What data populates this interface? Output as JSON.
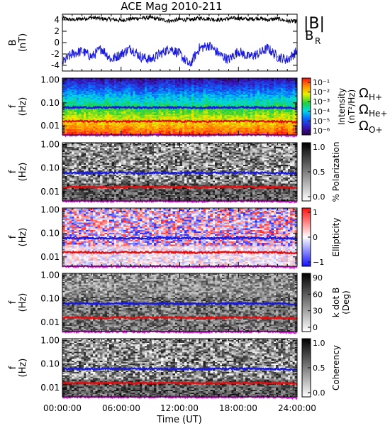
{
  "title": "ACE Mag 2010-211",
  "xaxis": {
    "label": "Time (UT)",
    "ticks": [
      "00:00:00",
      "06:00:00",
      "12:00:00",
      "18:00:00",
      "24:00:00"
    ],
    "range_hours": [
      0,
      24
    ]
  },
  "legend_top": [
    {
      "text": "|B|",
      "color": "#000000"
    },
    {
      "text": "B",
      "sub": "R",
      "color": "#1a1adc"
    }
  ],
  "legend_freq": [
    {
      "symbol": "Ω",
      "sub": "H+",
      "color": "#1a1adc"
    },
    {
      "symbol": "Ω",
      "sub": "He+",
      "color": "#e01010"
    },
    {
      "symbol": "Ω",
      "sub": "O+",
      "color": "#dd22dd"
    }
  ],
  "colors": {
    "blue": "#1a1adc",
    "red": "#e01010",
    "magenta": "#dd22dd",
    "black": "#000000"
  },
  "chart_data": [
    {
      "type": "line",
      "ylabel_lines": [
        "B",
        "(nT)"
      ],
      "ylim": [
        -5,
        5
      ],
      "yticks": [
        -4,
        -2,
        0,
        2,
        4
      ],
      "series": [
        {
          "name": "|B|",
          "color": "#000000",
          "x": [
            0,
            1,
            2,
            3,
            4,
            5,
            6,
            7,
            8,
            9,
            10,
            11,
            12,
            13,
            14,
            15,
            16,
            17,
            18,
            19,
            20,
            21,
            22,
            23,
            24
          ],
          "values": [
            4.3,
            4.0,
            4.2,
            4.4,
            4.2,
            4.1,
            3.9,
            4.2,
            4.3,
            4.4,
            4.1,
            3.8,
            4.1,
            4.0,
            4.3,
            4.2,
            4.0,
            4.2,
            4.3,
            4.1,
            4.3,
            4.0,
            4.2,
            3.8,
            3.7
          ]
        },
        {
          "name": "BR",
          "color": "#1a1adc",
          "x": [
            0,
            1,
            2,
            3,
            4,
            5,
            6,
            7,
            8,
            9,
            10,
            11,
            12,
            13,
            14,
            15,
            16,
            17,
            18,
            19,
            20,
            21,
            22,
            23,
            24
          ],
          "values": [
            -3.5,
            -2.0,
            -1.5,
            -2.5,
            -1.0,
            -3.0,
            -2.0,
            -1.0,
            -2.5,
            -3.0,
            -2.0,
            -1.0,
            -2.0,
            -4.0,
            -1.0,
            -0.5,
            -2.0,
            -3.0,
            -1.5,
            -2.5,
            -2.0,
            -1.0,
            -2.5,
            -3.0,
            -1.5
          ]
        }
      ]
    },
    {
      "type": "heatmap",
      "name": "intensity",
      "ylabel_lines": [
        "f",
        "(Hz)"
      ],
      "yscale": "log",
      "ylim": [
        0.004,
        1.2
      ],
      "yticks": [
        "1.00",
        "0.10",
        "0.01"
      ],
      "colorbar": {
        "label_lines": [
          "Intensity",
          "(nT²/Hz)"
        ],
        "ticks": [
          "10⁻¹",
          "10⁻²",
          "10⁻³",
          "10⁻⁴",
          "10⁻⁵",
          "10⁻⁶"
        ],
        "scale": "rainbow"
      }
    },
    {
      "type": "heatmap",
      "name": "polarization",
      "ylabel_lines": [
        "f",
        "(Hz)"
      ],
      "yscale": "log",
      "ylim": [
        0.004,
        1.2
      ],
      "yticks": [
        "1.00",
        "0.10",
        "0.01"
      ],
      "colorbar": {
        "label_lines": [
          "% Polarization"
        ],
        "ticks": [
          "1.0",
          "0.5",
          "0.0"
        ],
        "scale": "gray"
      }
    },
    {
      "type": "heatmap",
      "name": "ellipticity",
      "ylabel_lines": [
        "f",
        "(Hz)"
      ],
      "yscale": "log",
      "ylim": [
        0.004,
        1.2
      ],
      "yticks": [
        "1.00",
        "0.10",
        "0.01"
      ],
      "colorbar": {
        "label_lines": [
          "Ellipticity"
        ],
        "ticks": [
          "1",
          "0",
          "−1"
        ],
        "scale": "bwr"
      }
    },
    {
      "type": "heatmap",
      "name": "kdotb",
      "ylabel_lines": [
        "f",
        "(Hz)"
      ],
      "yscale": "log",
      "ylim": [
        0.004,
        1.2
      ],
      "yticks": [
        "1.00",
        "0.10",
        "0.01"
      ],
      "colorbar": {
        "label_lines": [
          "k dot B",
          "(Deg)"
        ],
        "ticks": [
          "90",
          "60",
          "30",
          "0"
        ],
        "scale": "gray"
      }
    },
    {
      "type": "heatmap",
      "name": "coherency",
      "ylabel_lines": [
        "f",
        "(Hz)"
      ],
      "yscale": "log",
      "ylim": [
        0.004,
        1.2
      ],
      "yticks": [
        "1.00",
        "0.10",
        "0.01"
      ],
      "colorbar": {
        "label_lines": [
          "Coherency"
        ],
        "ticks": [
          "1.0",
          "0.5",
          "0.0"
        ],
        "scale": "gray"
      }
    }
  ],
  "gyro_lines": [
    {
      "name": "Ω H+",
      "color": "#1a1adc",
      "x": [
        0,
        2,
        4,
        6,
        8,
        10,
        12,
        14,
        16,
        18,
        20,
        22,
        24
      ],
      "values": [
        0.062,
        0.063,
        0.062,
        0.064,
        0.062,
        0.063,
        0.063,
        0.061,
        0.063,
        0.064,
        0.063,
        0.062,
        0.058
      ]
    },
    {
      "name": "Ω He+",
      "color": "#e01010",
      "x": [
        0,
        2,
        4,
        6,
        8,
        10,
        12,
        14,
        16,
        18,
        20,
        22,
        24
      ],
      "values": [
        0.0155,
        0.016,
        0.0155,
        0.016,
        0.0155,
        0.016,
        0.0158,
        0.0152,
        0.0158,
        0.016,
        0.0158,
        0.0155,
        0.0145
      ]
    },
    {
      "name": "Ω O+",
      "color": "#dd22dd",
      "x": [
        0,
        2,
        4,
        6,
        8,
        10,
        12,
        14,
        16,
        18,
        20,
        22,
        24
      ],
      "values": [
        0.0039,
        0.004,
        0.0039,
        0.004,
        0.0039,
        0.004,
        0.0039,
        0.0038,
        0.004,
        0.004,
        0.004,
        0.0039,
        0.0036
      ]
    }
  ]
}
